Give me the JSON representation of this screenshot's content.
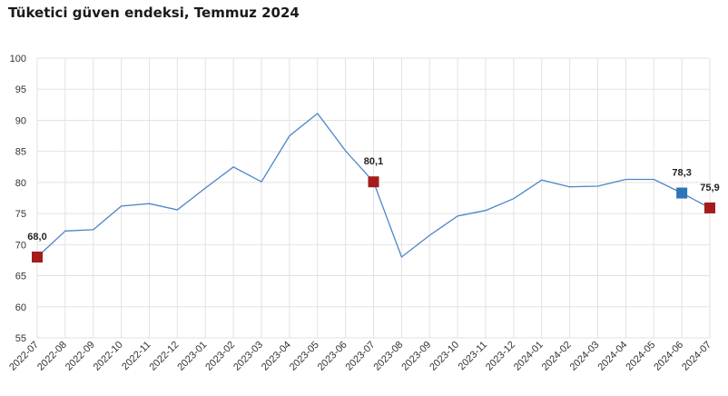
{
  "title": "Tüketici güven endeksi, Temmuz 2024",
  "colors": {
    "line": "#4a86c8",
    "highlight_red": "#a51c1c",
    "highlight_blue": "#2e75b6",
    "grid": "#e2e2e2"
  },
  "chart_data": {
    "type": "line",
    "title": "Tüketici güven endeksi, Temmuz 2024",
    "xlabel": "",
    "ylabel": "",
    "ylim": [
      55,
      100
    ],
    "yticks": [
      55,
      60,
      65,
      70,
      75,
      80,
      85,
      90,
      95,
      100
    ],
    "grid": true,
    "categories": [
      "2022-07",
      "2022-08",
      "2022-09",
      "2022-10",
      "2022-11",
      "2022-12",
      "2023-01",
      "2023-02",
      "2023-03",
      "2023-04",
      "2023-05",
      "2023-06",
      "2023-07",
      "2023-08",
      "2023-09",
      "2023-10",
      "2023-11",
      "2023-12",
      "2024-01",
      "2024-02",
      "2024-03",
      "2024-04",
      "2024-05",
      "2024-06",
      "2024-07"
    ],
    "series": [
      {
        "values": [
          68.0,
          72.2,
          72.4,
          76.2,
          76.6,
          75.6,
          79.1,
          82.5,
          80.1,
          87.5,
          91.1,
          85.1,
          80.1,
          68.0,
          71.5,
          74.6,
          75.5,
          77.4,
          80.4,
          79.3,
          79.4,
          80.5,
          80.5,
          78.3,
          75.9
        ]
      }
    ],
    "highlights": [
      {
        "category": "2022-07",
        "value": 68.0,
        "label": "68,0",
        "color": "red"
      },
      {
        "category": "2023-07",
        "value": 80.1,
        "label": "80,1",
        "color": "red"
      },
      {
        "category": "2024-06",
        "value": 78.3,
        "label": "78,3",
        "color": "blue"
      },
      {
        "category": "2024-07",
        "value": 75.9,
        "label": "75,9",
        "color": "red"
      }
    ]
  }
}
